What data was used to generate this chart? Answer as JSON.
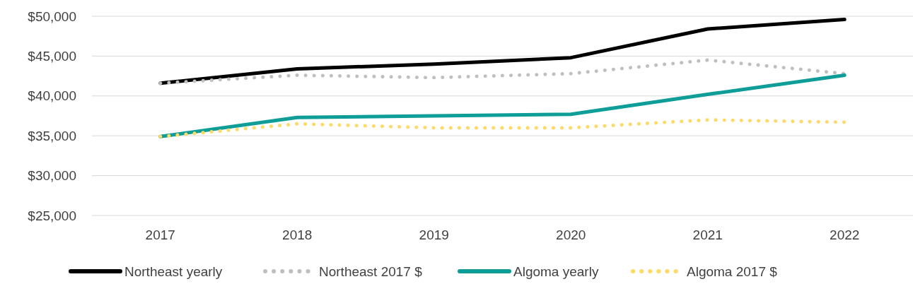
{
  "chart_data": {
    "type": "line",
    "categories": [
      "2017",
      "2018",
      "2019",
      "2020",
      "2021",
      "2022"
    ],
    "series": [
      {
        "name": "Northeast yearly",
        "color": "#000000",
        "line_style": "solid",
        "values": [
          41600,
          43400,
          44000,
          44800,
          48400,
          49600
        ]
      },
      {
        "name": "Northeast 2017 $",
        "color": "#bfbfbf",
        "line_style": "dotted",
        "values": [
          41600,
          42600,
          42300,
          42800,
          44500,
          42800
        ]
      },
      {
        "name": "Algoma yearly",
        "color": "#0e9e97",
        "line_style": "solid",
        "values": [
          34900,
          37300,
          37500,
          37700,
          40200,
          42600
        ]
      },
      {
        "name": "Algoma 2017 $",
        "color": "#ffd966",
        "line_style": "dotted",
        "values": [
          34900,
          36500,
          36000,
          36000,
          37000,
          36700
        ]
      }
    ],
    "ylim": [
      25000,
      50000
    ],
    "yticks": [
      {
        "value": 25000,
        "label": "$25,000"
      },
      {
        "value": 30000,
        "label": "$30,000"
      },
      {
        "value": 35000,
        "label": "$35,000"
      },
      {
        "value": 40000,
        "label": "$40,000"
      },
      {
        "value": 45000,
        "label": "$45,000"
      },
      {
        "value": 50000,
        "label": "$50,000"
      }
    ],
    "grid": "y",
    "legend": "bottom",
    "marker": "none"
  }
}
